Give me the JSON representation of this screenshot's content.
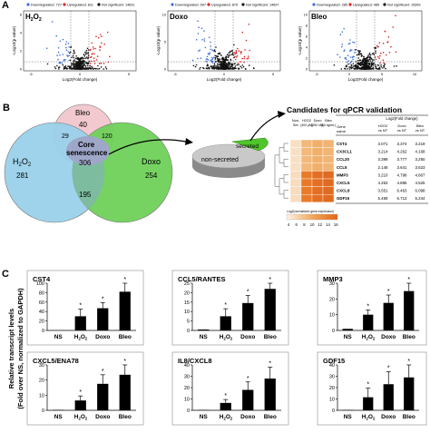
{
  "panel_a": {
    "letter": "A",
    "plots": [
      {
        "title": "H2O2",
        "title_main": "H",
        "title_sub1": "2",
        "title_mid": "O",
        "title_sub2": "2",
        "legend": [
          "Downregulated: 727",
          "Upregulated: 811",
          "Not significant: 14631"
        ],
        "ylabel": "-Log10(p value)",
        "xlabel": "Log2(Fold change)",
        "xticks": [
          "-5",
          "0",
          "5"
        ],
        "yticks": [
          "0",
          "2",
          "4",
          "6"
        ]
      },
      {
        "title": "Doxo",
        "legend": [
          "Downregulated: 597",
          "Upregulated: 875",
          "Not significant: 14697"
        ],
        "ylabel": "-Log10(p value)",
        "xlabel": "Log2(Fold change)",
        "xticks": [
          "-5",
          "0",
          "5"
        ],
        "yticks": [
          "0",
          "5",
          "10"
        ]
      },
      {
        "title": "Bleo",
        "legend": [
          "Downregulated: 285",
          "Upregulated: 485",
          "Not significant: 15399"
        ],
        "ylabel": "-Log10(p value)",
        "xlabel": "Log2(Fold change)",
        "xticks": [
          "-5",
          "0",
          "5",
          "10"
        ],
        "yticks": [
          "0",
          "2",
          "4",
          "6",
          "8",
          "10"
        ]
      }
    ],
    "colors": {
      "down": "#3b6fd8",
      "up": "#e02020",
      "ns": "#111111"
    }
  },
  "panel_b": {
    "letter": "B",
    "venn": {
      "labels": {
        "bleo": "Bleo",
        "h2o2": "H2O2",
        "doxo": "Doxo"
      },
      "counts": {
        "bleo_only": "40",
        "h2o2_bleo": "29",
        "bleo_doxo": "120",
        "h2o2_only": "281",
        "core": "306",
        "doxo_only": "254",
        "h2o2_doxo": "195"
      },
      "core_label": [
        "Core",
        "senescence"
      ],
      "colors": {
        "bleo": "#f2c9cf",
        "h2o2": "#9ad1ea",
        "doxo": "#6fd15a",
        "center": "#9fa7c9"
      }
    },
    "pie": {
      "secreted": "secreted",
      "non_secreted": "non-secreted"
    },
    "qpcr": {
      "title": "Candidates for qPCR validation",
      "col_heads": [
        "Non-Sen",
        "H2O2 (400 µM)",
        "Doxo (250 nM)",
        "Bleo (10 ng/mL)"
      ],
      "gene_head": [
        "Gene",
        "name"
      ],
      "fc_head": "Log2(Fold change)",
      "fc_cols": [
        "H2O2 vs NT",
        "Doxo vs NT",
        "Bleo vs NT"
      ],
      "rows": [
        {
          "gene": "CST4",
          "fc": [
            "3.071",
            "3.374",
            "3.219"
          ]
        },
        {
          "gene": "CX3CL1",
          "fc": [
            "3.214",
            "4.262",
            "4.168"
          ]
        },
        {
          "gene": "CCL20",
          "fc": [
            "3.399",
            "3.777",
            "3.250"
          ]
        },
        {
          "gene": "CCL5",
          "fc": [
            "2.148",
            "3.641",
            "3.623"
          ]
        },
        {
          "gene": "MMP3",
          "fc": [
            "3.210",
            "4.798",
            "4.807"
          ]
        },
        {
          "gene": "CXCL5",
          "fc": [
            "4.253",
            "4.896",
            "4.525"
          ]
        },
        {
          "gene": "CXCL8",
          "fc": [
            "3.551",
            "6.463",
            "6.098"
          ]
        },
        {
          "gene": "GDF15",
          "fc": [
            "5.459",
            "6.713",
            "5.244"
          ]
        }
      ],
      "scale_label": "Log2(normalized gene expression)",
      "scale_ticks": [
        "4",
        "6",
        "8",
        "10",
        "12",
        "14",
        "16"
      ]
    }
  },
  "panel_c": {
    "letter": "C",
    "ylabel": [
      "Relative transcript levels",
      "(Fold over NS, normalized to GAPDH)"
    ],
    "chart_data": [
      {
        "type": "bar",
        "title": "CST4",
        "categories": [
          "NS",
          "H2O2",
          "Doxo",
          "Bleo"
        ],
        "values": [
          0.05,
          30,
          47,
          82
        ],
        "errors": [
          0,
          15,
          12,
          38
        ],
        "sig": [
          "",
          "*",
          "*",
          "*"
        ],
        "ylim": [
          0,
          100
        ]
      },
      {
        "type": "bar",
        "title": "CCL5/RANTES",
        "categories": [
          "NS",
          "H2O2",
          "Doxo",
          "Bleo"
        ],
        "values": [
          0.5,
          7.5,
          14.5,
          22
        ],
        "errors": [
          0,
          4,
          4,
          4.5
        ],
        "sig": [
          "",
          "*",
          "*",
          "*"
        ],
        "ylim": [
          0,
          25
        ]
      },
      {
        "type": "bar",
        "title": "MMP3",
        "categories": [
          "NS",
          "H2O2",
          "Doxo",
          "Bleo"
        ],
        "values": [
          1,
          10,
          17.5,
          25
        ],
        "errors": [
          0,
          3,
          5,
          5
        ],
        "sig": [
          "",
          "*",
          "*",
          "*"
        ],
        "ylim": [
          0,
          30
        ]
      },
      {
        "type": "bar",
        "title": "CXCL5/ENA78",
        "categories": [
          "NS",
          "H2O2",
          "Doxo",
          "Bleo"
        ],
        "values": [
          0.3,
          6.5,
          17.5,
          23.5
        ],
        "errors": [
          0,
          3,
          6,
          9
        ],
        "sig": [
          "",
          "*",
          "*",
          "*"
        ],
        "ylim": [
          0,
          30
        ]
      },
      {
        "type": "bar",
        "title": "IL8/CXCL8",
        "categories": [
          "NS",
          "H2O2",
          "Doxo",
          "Bleo"
        ],
        "values": [
          0.3,
          6.5,
          18,
          28
        ],
        "errors": [
          0,
          3,
          7,
          10
        ],
        "sig": [
          "",
          "*",
          "*",
          "*"
        ],
        "ylim": [
          0,
          40
        ]
      },
      {
        "type": "bar",
        "title": "GDF15",
        "categories": [
          "NS",
          "H2O2",
          "Doxo",
          "Bleo"
        ],
        "values": [
          0.3,
          11.5,
          23,
          29
        ],
        "errors": [
          0,
          8,
          11,
          13
        ],
        "sig": [
          "",
          "*",
          "*",
          "*"
        ],
        "ylim": [
          0,
          40
        ]
      }
    ]
  }
}
